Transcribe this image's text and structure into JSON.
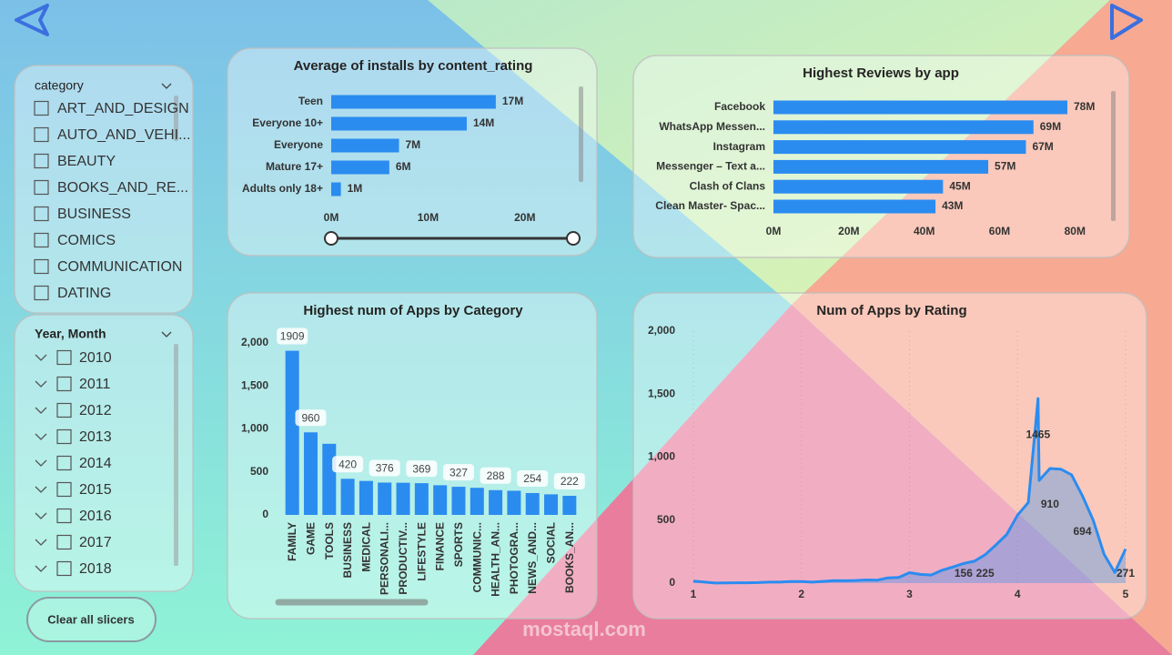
{
  "slicers": [
    {
      "title": "category",
      "items": [
        "ART_AND_DESIGN",
        "AUTO_AND_VEHI...",
        "BEAUTY",
        "BOOKS_AND_RE...",
        "BUSINESS",
        "COMICS",
        "COMMUNICATION",
        "DATING"
      ]
    },
    {
      "title": "Year, Month",
      "items": [
        "2010",
        "2011",
        "2012",
        "2013",
        "2014",
        "2015",
        "2016",
        "2017",
        "2018"
      ]
    }
  ],
  "clear_button": "Clear all slicers",
  "watermark": "mostaql.com",
  "chart_data": [
    {
      "type": "hbar",
      "title": "Average of installs by content_rating",
      "categories": [
        "Teen",
        "Everyone 10+",
        "Everyone",
        "Mature 17+",
        "Adults only 18+"
      ],
      "values": [
        17000000,
        14000000,
        7000000,
        6000000,
        1000000
      ],
      "value_labels": [
        "17M",
        "14M",
        "7M",
        "6M",
        "1M"
      ],
      "color": "#2b8cf0",
      "xlim": [
        0,
        25000000
      ],
      "xticks": [
        {
          "value": 0,
          "label": "0M"
        },
        {
          "value": 10000000,
          "label": "10M"
        },
        {
          "value": 20000000,
          "label": "20M"
        }
      ]
    },
    {
      "type": "hbar",
      "title": "Highest Reviews by app",
      "categories": [
        "Facebook",
        "WhatsApp Messen...",
        "Instagram",
        "Messenger – Text a...",
        "Clash of Clans",
        "Clean Master- Spac..."
      ],
      "values": [
        78000000,
        69000000,
        67000000,
        57000000,
        45000000,
        43000000
      ],
      "value_labels": [
        "78M",
        "69M",
        "67M",
        "57M",
        "45M",
        "43M"
      ],
      "color": "#2b8cf0",
      "xlim": [
        0,
        85000000
      ],
      "xticks": [
        {
          "value": 0,
          "label": "0M"
        },
        {
          "value": 20000000,
          "label": "20M"
        },
        {
          "value": 40000000,
          "label": "40M"
        },
        {
          "value": 60000000,
          "label": "60M"
        },
        {
          "value": 80000000,
          "label": "80M"
        }
      ]
    },
    {
      "type": "bar",
      "title": "Highest num of Apps by Category",
      "categories": [
        "FAMILY",
        "GAME",
        "TOOLS",
        "BUSINESS",
        "MEDICAL",
        "PERSONALI...",
        "PRODUCTIV...",
        "LIFESTYLE",
        "FINANCE",
        "SPORTS",
        "COMMUNIC...",
        "HEALTH_AN...",
        "PHOTOGRA...",
        "NEWS_AND...",
        "SOCIAL",
        "BOOKS_AN..."
      ],
      "values": [
        1909,
        960,
        827,
        420,
        395,
        376,
        374,
        369,
        345,
        327,
        315,
        288,
        281,
        254,
        239,
        222
      ],
      "value_labels": [
        "1909",
        "960",
        null,
        "420",
        null,
        "376",
        null,
        "369",
        null,
        "327",
        null,
        "288",
        null,
        "254",
        null,
        "222"
      ],
      "color": "#2b8cf0",
      "ylim": [
        0,
        2100
      ],
      "yticks": [
        0,
        500,
        {
          "value": 1000,
          "label": "1,000"
        },
        {
          "value": 1500,
          "label": "1,500"
        },
        {
          "value": 2000,
          "label": "2,000"
        }
      ]
    },
    {
      "type": "area",
      "title": "Num of Apps by Rating",
      "x": [
        1,
        1.2,
        1.4,
        1.5,
        1.6,
        1.7,
        1.8,
        1.9,
        2,
        2.1,
        2.2,
        2.3,
        2.4,
        2.5,
        2.6,
        2.7,
        2.8,
        2.9,
        3,
        3.1,
        3.2,
        3.3,
        3.4,
        3.5,
        3.6,
        3.7,
        3.8,
        3.9,
        4,
        4.1,
        4.19,
        4.2,
        4.3,
        4.4,
        4.5,
        4.6,
        4.7,
        4.8,
        4.9,
        5
      ],
      "values": [
        16,
        1,
        3,
        3,
        4,
        8,
        8,
        13,
        12,
        8,
        14,
        20,
        19,
        21,
        25,
        23,
        42,
        45,
        83,
        69,
        64,
        102,
        128,
        156,
        174,
        225,
        303,
        386,
        540,
        640,
        1465,
        815,
        910,
        905,
        860,
        694,
        500,
        230,
        85,
        271
      ],
      "value_labels": [
        null,
        null,
        null,
        null,
        null,
        null,
        null,
        null,
        null,
        null,
        null,
        null,
        null,
        null,
        null,
        null,
        null,
        null,
        null,
        null,
        null,
        null,
        null,
        "156",
        null,
        "225",
        null,
        null,
        null,
        null,
        "1465",
        null,
        "910",
        null,
        null,
        "694",
        null,
        null,
        null,
        "271"
      ],
      "color": "#2b8cf0",
      "grid": true,
      "xlim": [
        1,
        5
      ],
      "xticks": [
        1,
        2,
        3,
        4,
        5
      ],
      "ylim": [
        0,
        2000
      ],
      "yticks": [
        0,
        500,
        {
          "value": 1000,
          "label": "1,000"
        },
        {
          "value": 1500,
          "label": "1,500"
        },
        {
          "value": 2000,
          "label": "2,000"
        }
      ]
    }
  ]
}
